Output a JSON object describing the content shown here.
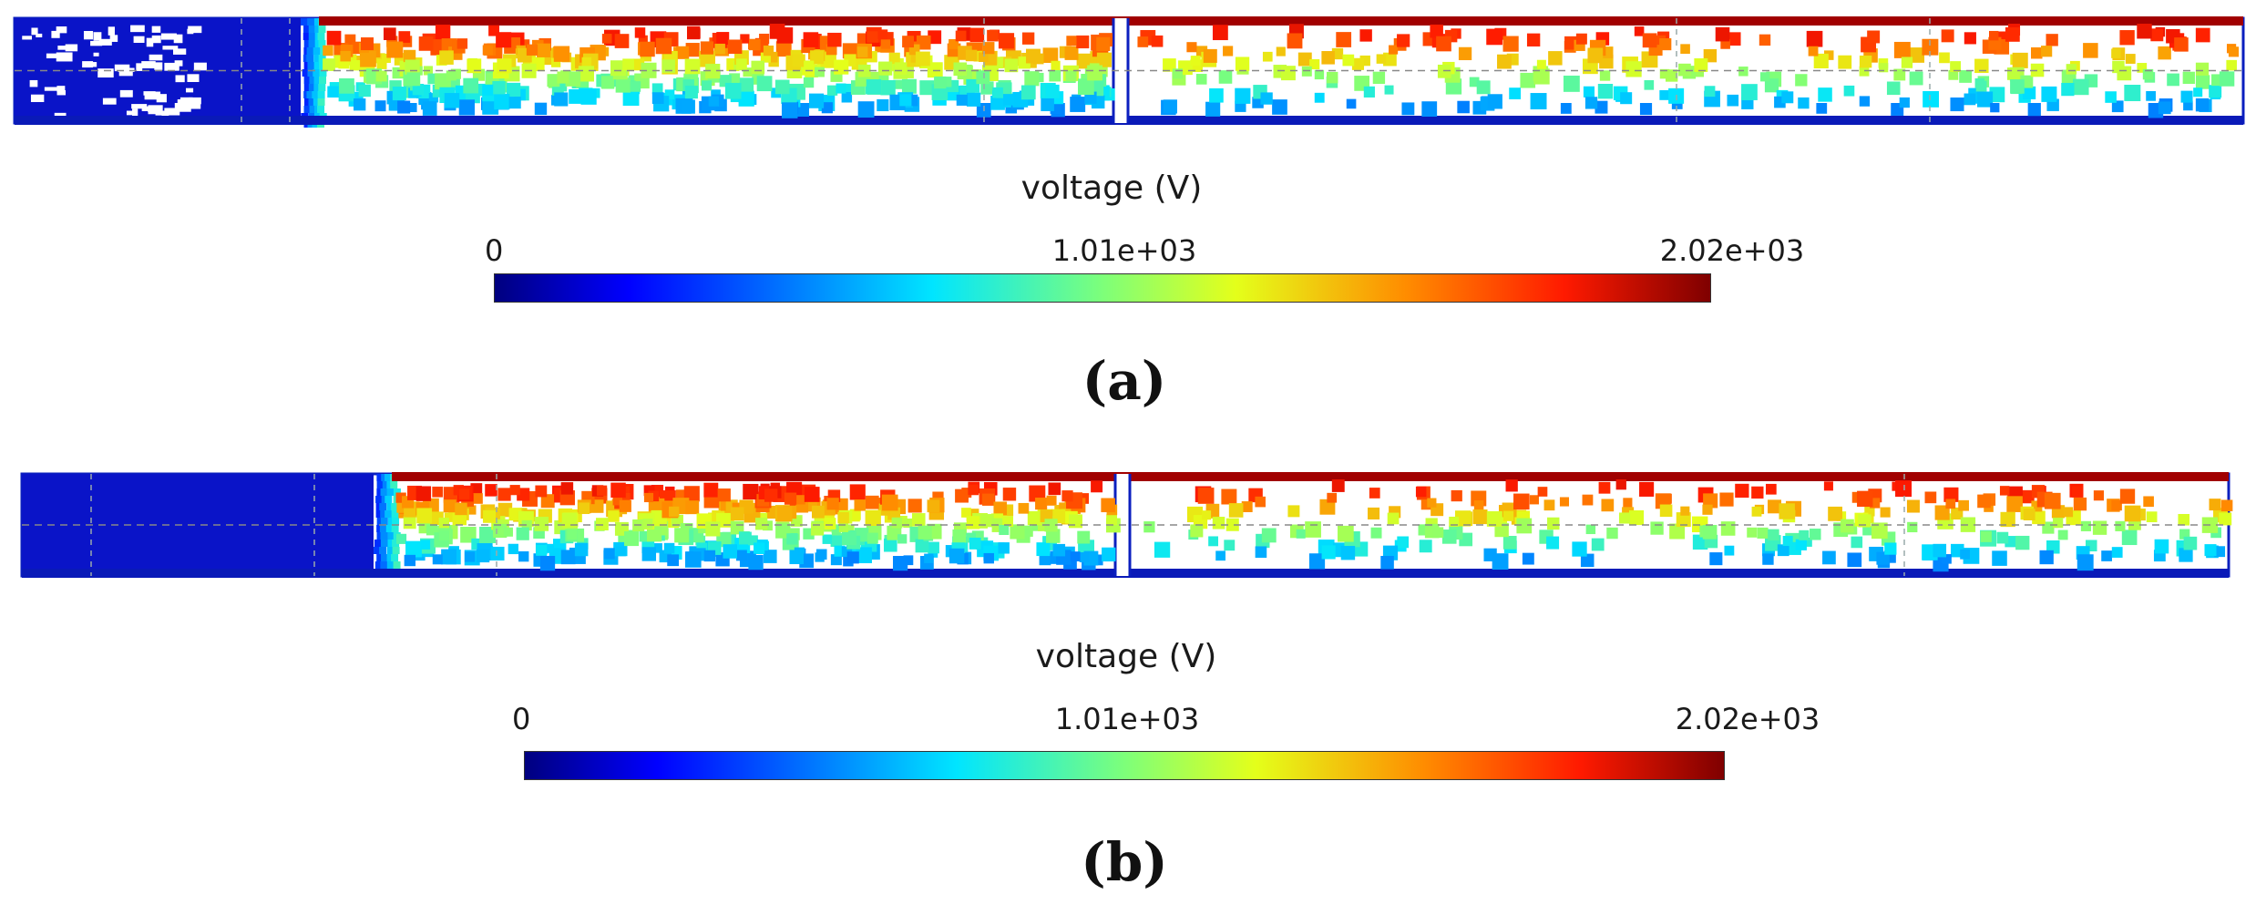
{
  "colormap": [
    "#00007f",
    "#0000ff",
    "#0080ff",
    "#00e5ff",
    "#7dff7a",
    "#e4ff1a",
    "#ff8c00",
    "#ff1a00",
    "#7f0000"
  ],
  "panels": [
    {
      "id": "a",
      "caption": "(a)",
      "colorbar": {
        "title": "voltage (V)",
        "min_label": "0",
        "mid_label": "1.01e+03",
        "max_label": "2.02e+03",
        "min": 0,
        "max": 2020
      }
    },
    {
      "id": "b",
      "caption": "(b)",
      "colorbar": {
        "title": "voltage (V)",
        "min_label": "0",
        "mid_label": "1.01e+03",
        "max_label": "2.02e+03",
        "min": 0,
        "max": 2020
      }
    }
  ]
}
